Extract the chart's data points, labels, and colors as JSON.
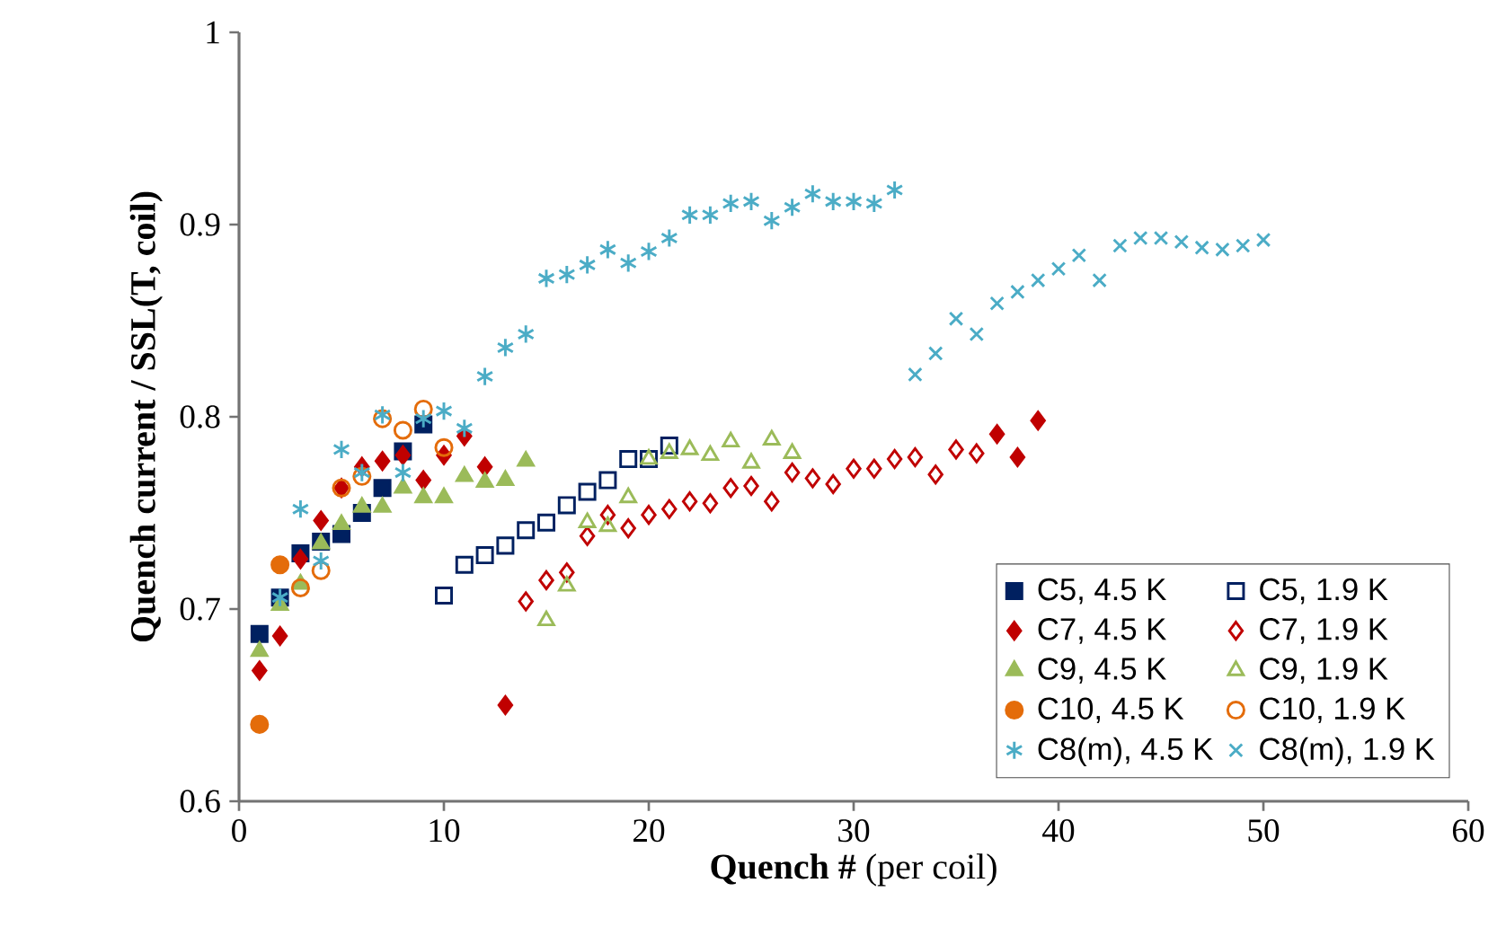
{
  "chart_data": {
    "type": "scatter",
    "xlabel": "**Quench #**  (per coil)",
    "ylabel": "Quench current  / SSL(T, coil)",
    "xlim": [
      0,
      60
    ],
    "ylim": [
      0.6,
      1
    ],
    "xticks": [
      0,
      10,
      20,
      30,
      40,
      50,
      60
    ],
    "yticks": [
      0.6,
      0.7,
      0.8,
      0.9,
      1
    ],
    "grid": false,
    "legend": "bottom right",
    "series": [
      {
        "name": "C5, 4.5 K",
        "color": "#002060",
        "marker": "square",
        "x": [
          1,
          2,
          3,
          4,
          5,
          6,
          7,
          8,
          9
        ],
        "values": [
          0.687,
          0.706,
          0.729,
          0.735,
          0.739,
          0.75,
          0.763,
          0.782,
          0.796
        ]
      },
      {
        "name": "C5, 1.9 K",
        "color": "#002060",
        "marker": "square",
        "x": [
          10,
          11,
          12,
          13,
          14,
          15,
          16,
          17,
          18,
          19,
          20,
          21
        ],
        "values": [
          0.707,
          0.723,
          0.728,
          0.733,
          0.741,
          0.745,
          0.754,
          0.761,
          0.767,
          0.778,
          0.778,
          0.785
        ]
      },
      {
        "name": "C7, 4.5 K",
        "color": "#c00000",
        "marker": "diamond",
        "x": [
          1,
          2,
          3,
          4,
          5,
          6,
          7,
          8,
          9,
          10,
          11,
          12,
          13,
          37,
          38,
          39
        ],
        "values": [
          0.668,
          0.686,
          0.726,
          0.746,
          0.763,
          0.774,
          0.777,
          0.78,
          0.767,
          0.78,
          0.79,
          0.774,
          0.65,
          0.791,
          0.779,
          0.798
        ]
      },
      {
        "name": "C7, 1.9 K",
        "color": "#c00000",
        "marker": "diamond",
        "x": [
          14,
          15,
          16,
          17,
          18,
          19,
          20,
          21,
          22,
          23,
          24,
          25,
          26,
          27,
          28,
          29,
          30,
          31,
          32,
          33,
          34,
          35,
          36
        ],
        "values": [
          0.704,
          0.715,
          0.719,
          0.738,
          0.749,
          0.742,
          0.749,
          0.752,
          0.756,
          0.755,
          0.763,
          0.764,
          0.756,
          0.771,
          0.768,
          0.765,
          0.773,
          0.773,
          0.778,
          0.779,
          0.77,
          0.783,
          0.781
        ]
      },
      {
        "name": "C9, 4.5 K",
        "color": "#9bbb59",
        "marker": "triangle",
        "x": [
          1,
          2,
          3,
          4,
          5,
          6,
          7,
          8,
          9,
          10,
          11,
          12,
          13,
          14
        ],
        "values": [
          0.678,
          0.702,
          0.713,
          0.734,
          0.744,
          0.753,
          0.753,
          0.763,
          0.758,
          0.758,
          0.769,
          0.766,
          0.767,
          0.777
        ]
      },
      {
        "name": "C9, 1.9 K",
        "color": "#9bbb59",
        "marker": "triangle",
        "x": [
          15,
          16,
          17,
          18,
          19,
          20,
          21,
          22,
          23,
          24,
          25,
          26,
          27
        ],
        "values": [
          0.694,
          0.712,
          0.745,
          0.743,
          0.758,
          0.778,
          0.781,
          0.783,
          0.78,
          0.787,
          0.776,
          0.788,
          0.781
        ]
      },
      {
        "name": "C10, 4.5 K",
        "color": "#e46c0a",
        "marker": "circle",
        "x": [
          1,
          2
        ],
        "values": [
          0.64,
          0.723
        ]
      },
      {
        "name": "C10, 1.9 K",
        "color": "#e46c0a",
        "marker": "circle",
        "x": [
          3,
          4,
          5,
          6,
          7,
          8,
          9,
          10
        ],
        "values": [
          0.711,
          0.72,
          0.763,
          0.769,
          0.799,
          0.793,
          0.804,
          0.784
        ]
      },
      {
        "name": "C8(m), 4.5 K",
        "color": "#4bacc6",
        "marker": "cross",
        "x": [
          2,
          3,
          4,
          5,
          6,
          7,
          8,
          9,
          10,
          11,
          12,
          13,
          14,
          15,
          16,
          17,
          18,
          19,
          20,
          21,
          22,
          23,
          24,
          25,
          26,
          27,
          28,
          29,
          30,
          31,
          32
        ],
        "values": [
          0.706,
          0.752,
          0.725,
          0.783,
          0.771,
          0.801,
          0.771,
          0.799,
          0.803,
          0.794,
          0.821,
          0.836,
          0.843,
          0.872,
          0.874,
          0.879,
          0.887,
          0.88,
          0.886,
          0.893,
          0.905,
          0.905,
          0.911,
          0.912,
          0.902,
          0.909,
          0.916,
          0.912,
          0.912,
          0.911,
          0.918
        ]
      },
      {
        "name": "C8(m), 1.9 K",
        "color": "#4bacc6",
        "marker": "cross",
        "x": [
          33,
          34,
          35,
          36,
          37,
          38,
          39,
          40,
          41,
          42,
          43,
          44,
          45,
          46,
          47,
          48,
          49,
          50
        ],
        "values": [
          0.822,
          0.833,
          0.851,
          0.843,
          0.859,
          0.865,
          0.871,
          0.877,
          0.884,
          0.871,
          0.889,
          0.893,
          0.893,
          0.891,
          0.888,
          0.887,
          0.889,
          0.892
        ]
      }
    ]
  }
}
